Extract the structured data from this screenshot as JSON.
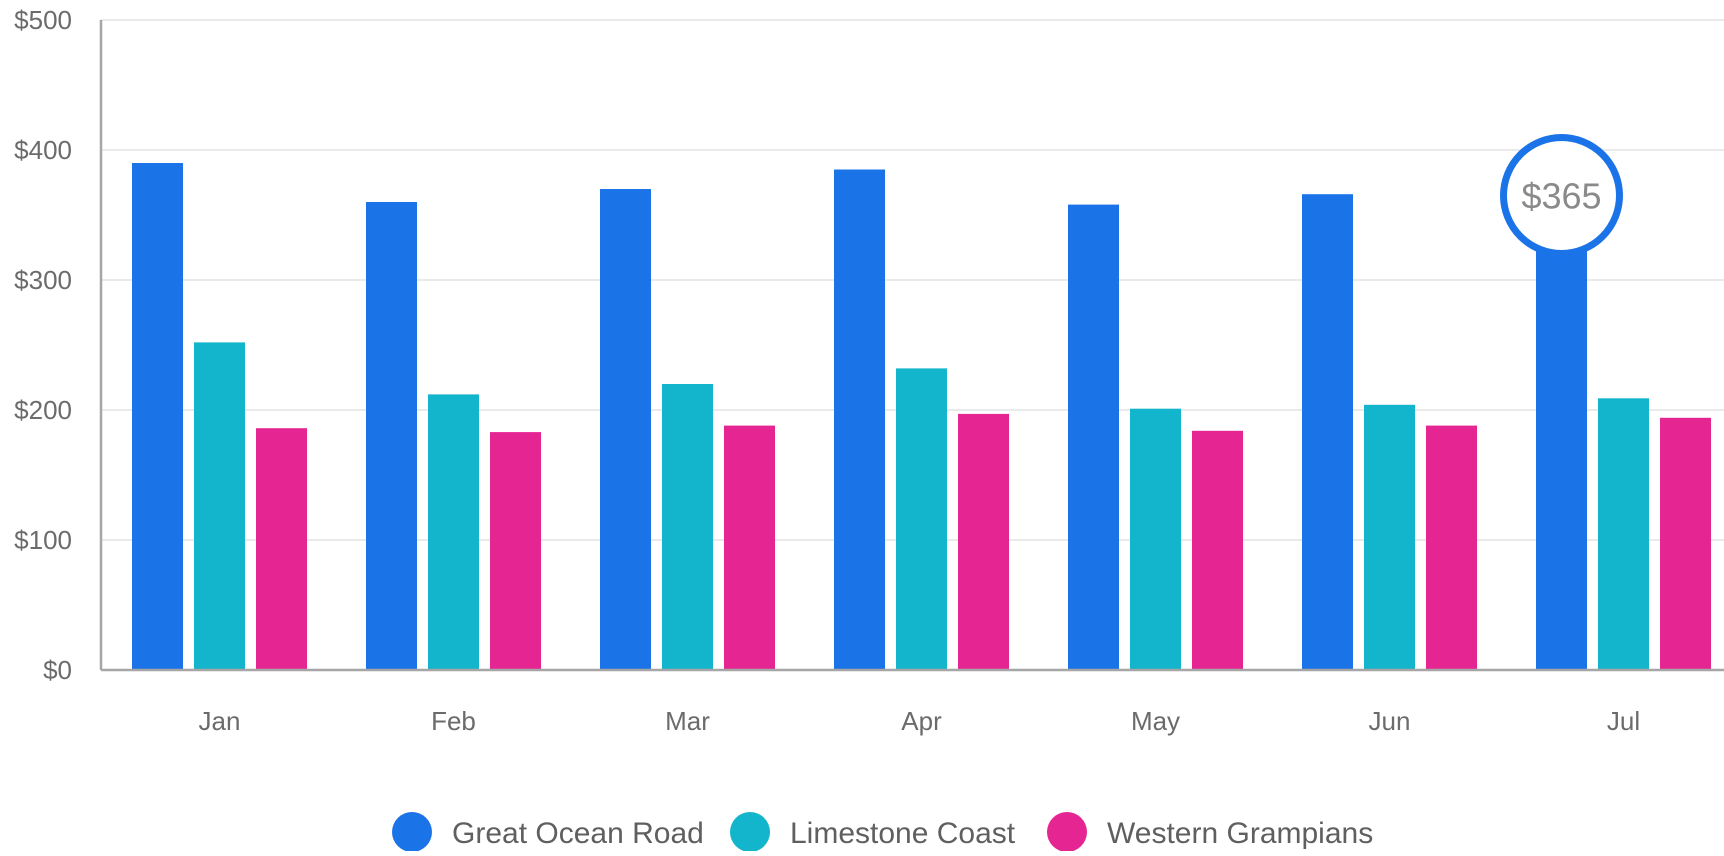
{
  "chart_data": {
    "type": "bar",
    "title": "",
    "xlabel": "",
    "ylabel": "",
    "categories": [
      "Jan",
      "Feb",
      "Mar",
      "Apr",
      "May",
      "Jun",
      "Jul"
    ],
    "series": [
      {
        "name": "Great Ocean Road",
        "color": "#1b73e8",
        "values": [
          390,
          360,
          370,
          385,
          358,
          366,
          365
        ]
      },
      {
        "name": "Limestone Coast",
        "color": "#12b5cb",
        "values": [
          252,
          212,
          220,
          232,
          201,
          204,
          209
        ]
      },
      {
        "name": "Western Grampians",
        "color": "#e52592",
        "values": [
          186,
          183,
          188,
          197,
          184,
          188,
          194
        ]
      }
    ],
    "ylim": [
      0,
      500
    ],
    "yticks": [
      0,
      100,
      200,
      300,
      400,
      500
    ],
    "ytick_labels": [
      "$0",
      "$100",
      "$200",
      "$300",
      "$400",
      "$500"
    ],
    "grid": true,
    "legend_position": "bottom",
    "highlight": {
      "series_index": 0,
      "category_index": 6,
      "label": "$365"
    }
  }
}
